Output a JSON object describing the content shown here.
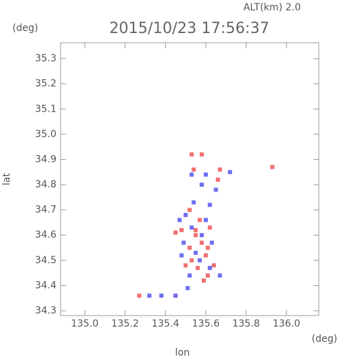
{
  "chart_data": {
    "type": "scatter",
    "title": "2015/10/23 17:56:37",
    "annotation": "ALT(km) 2.0",
    "y_unit": "(deg)",
    "x_unit": "(deg)",
    "xlabel": "lon",
    "ylabel": "lat",
    "xlim": [
      134.88,
      136.16
    ],
    "ylim": [
      34.281,
      35.363
    ],
    "xticks": [
      {
        "value": 135,
        "label": "135.0"
      },
      135.2,
      135.4,
      135.6,
      135.8,
      {
        "value": 136,
        "label": "136.0"
      }
    ],
    "yticks": [
      34.3,
      34.4,
      34.5,
      34.6,
      34.7,
      34.8,
      34.9,
      {
        "value": 35,
        "label": "35.0"
      },
      35.1,
      35.2,
      35.3
    ],
    "series": [
      {
        "color": "#f07070",
        "x": [
          135.27,
          135.53,
          135.58,
          135.54,
          135.67,
          135.93,
          135.52,
          135.48,
          135.55,
          135.58,
          135.62,
          135.57,
          135.52,
          135.61,
          135.5,
          135.56,
          135.59,
          135.61,
          135.53,
          135.64,
          135.45,
          135.66,
          135.55,
          135.6
        ],
        "values": [
          34.36,
          34.92,
          34.92,
          34.86,
          34.86,
          34.87,
          34.7,
          34.62,
          34.6,
          34.57,
          34.63,
          34.66,
          34.55,
          34.55,
          34.48,
          34.47,
          34.42,
          34.44,
          34.5,
          34.48,
          34.61,
          34.82,
          34.62,
          34.52
        ]
      },
      {
        "color": "#6f6ff0",
        "x": [
          135.32,
          135.38,
          135.45,
          135.51,
          135.53,
          135.6,
          135.65,
          135.72,
          135.5,
          135.53,
          135.6,
          135.58,
          135.49,
          135.55,
          135.63,
          135.52,
          135.57,
          135.62,
          135.67,
          135.48,
          135.54,
          135.62,
          135.47,
          135.58
        ],
        "values": [
          34.36,
          34.36,
          34.36,
          34.39,
          34.84,
          34.84,
          34.78,
          34.85,
          34.68,
          34.63,
          34.66,
          34.6,
          34.57,
          34.53,
          34.57,
          34.44,
          34.5,
          34.47,
          34.44,
          34.52,
          34.73,
          34.72,
          34.66,
          34.8
        ]
      }
    ]
  }
}
